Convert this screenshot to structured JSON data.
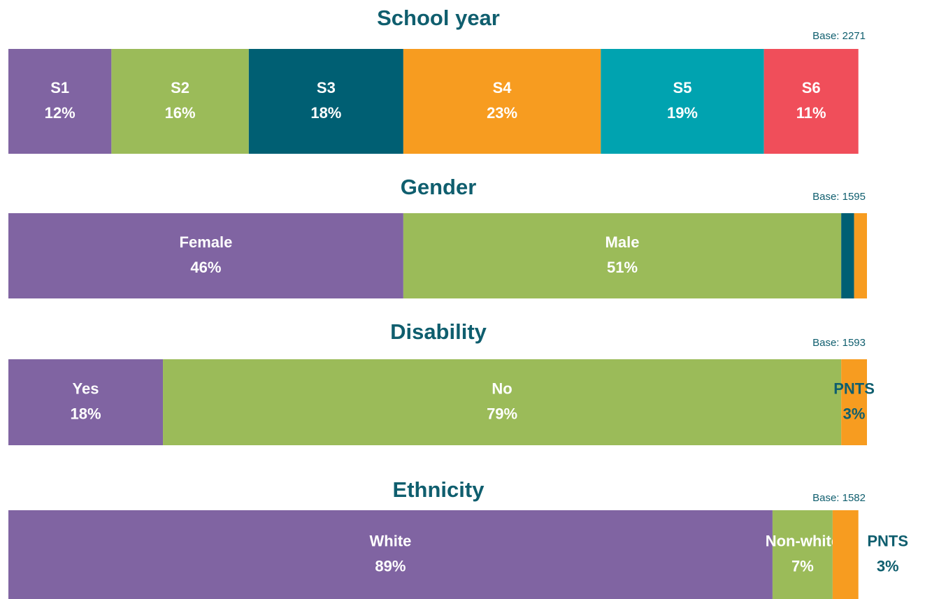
{
  "chart_data": [
    {
      "type": "bar",
      "orientation": "horizontal",
      "stacked": true,
      "title": "School year",
      "base": "Base: 2271",
      "categories": [
        "S1",
        "S2",
        "S3",
        "S4",
        "S5",
        "S6"
      ],
      "values": [
        12,
        16,
        18,
        23,
        19,
        11
      ],
      "value_labels": [
        "12%",
        "16%",
        "18%",
        "23%",
        "19%",
        "11%"
      ],
      "colors": [
        "#8064a2",
        "#9bbb59",
        "#005f73",
        "#f79c20",
        "#00a3b0",
        "#f04e5a"
      ],
      "xlim": [
        0,
        100
      ]
    },
    {
      "type": "bar",
      "orientation": "horizontal",
      "stacked": true,
      "title": "Gender",
      "base": "Base: 1595",
      "categories": [
        "Female",
        "Male",
        null,
        null
      ],
      "values": [
        46,
        51,
        1.5,
        1.5
      ],
      "value_labels": [
        "46%",
        "51%",
        null,
        null
      ],
      "colors": [
        "#8064a2",
        "#9bbb59",
        "#005f73",
        "#f79c20"
      ],
      "xlim": [
        0,
        100
      ]
    },
    {
      "type": "bar",
      "orientation": "horizontal",
      "stacked": true,
      "title": "Disability",
      "base": "Base: 1593",
      "categories": [
        "Yes",
        "No",
        "PNTS"
      ],
      "values": [
        18,
        79,
        3
      ],
      "value_labels": [
        "18%",
        "79%",
        "3%"
      ],
      "colors": [
        "#8064a2",
        "#9bbb59",
        "#f79c20"
      ],
      "xlim": [
        0,
        100
      ]
    },
    {
      "type": "bar",
      "orientation": "horizontal",
      "stacked": true,
      "title": "Ethnicity",
      "base": "Base: 1582",
      "categories": [
        "White",
        "Non-white",
        "PNTS"
      ],
      "values": [
        89,
        7,
        3
      ],
      "value_labels": [
        "89%",
        "7%",
        "3%"
      ],
      "colors": [
        "#8064a2",
        "#9bbb59",
        "#f79c20"
      ],
      "xlim": [
        0,
        100
      ]
    }
  ]
}
